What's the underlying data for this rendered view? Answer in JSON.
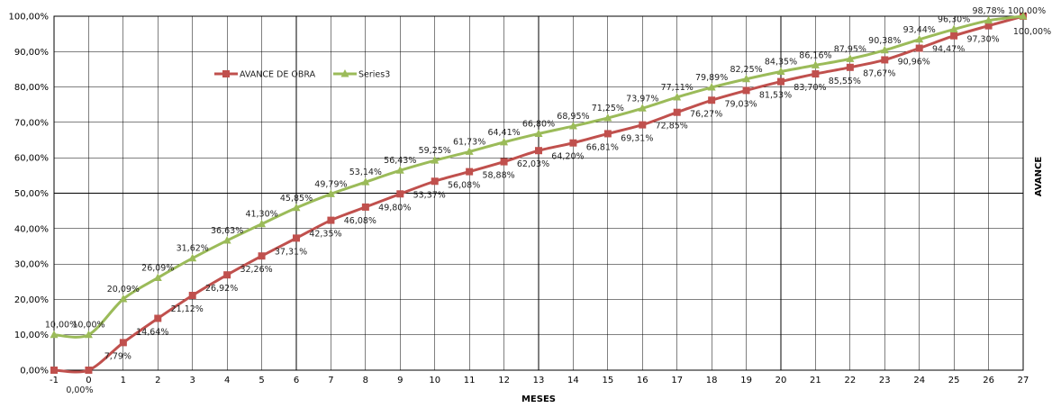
{
  "chart_data": {
    "type": "line",
    "title": "",
    "xlabel": "MESES",
    "ylabel": "AVANCE",
    "categories": [
      "-1",
      "0",
      "1",
      "2",
      "3",
      "4",
      "5",
      "6",
      "7",
      "8",
      "9",
      "10",
      "11",
      "12",
      "13",
      "14",
      "15",
      "16",
      "17",
      "18",
      "19",
      "20",
      "21",
      "22",
      "23",
      "24",
      "25",
      "26",
      "27"
    ],
    "y_tick_labels": [
      "0,00%",
      "10,00%",
      "20,00%",
      "30,00%",
      "40,00%",
      "50,00%",
      "60,00%",
      "70,00%",
      "80,00%",
      "90,00%",
      "100,00%"
    ],
    "ylim": [
      0,
      100
    ],
    "grid": true,
    "legend_position": "top-left",
    "series": [
      {
        "name": "AVANCE DE OBRA",
        "color": "#c0504d",
        "marker": "square",
        "values": [
          0,
          0,
          7.79,
          14.64,
          21.12,
          26.92,
          32.26,
          37.31,
          42.35,
          46.08,
          49.8,
          53.37,
          56.08,
          58.88,
          62.03,
          64.2,
          66.81,
          69.31,
          72.85,
          76.27,
          79.03,
          81.53,
          83.7,
          85.55,
          87.67,
          90.96,
          94.47,
          97.3,
          100
        ],
        "labels": [
          "",
          "0,00%",
          "7,79%",
          "14,64%",
          "21,12%",
          "26,92%",
          "32,26%",
          "37,31%",
          "42,35%",
          "46,08%",
          "49,80%",
          "53,37%",
          "56,08%",
          "58,88%",
          "62,03%",
          "64,20%",
          "66,81%",
          "69,31%",
          "72,85%",
          "76,27%",
          "79,03%",
          "81,53%",
          "83,70%",
          "85,55%",
          "87,67%",
          "90,96%",
          "94,47%",
          "97,30%",
          "100,00%"
        ]
      },
      {
        "name": "Series3",
        "color": "#9bbb59",
        "marker": "triangle",
        "values": [
          10,
          10,
          20.09,
          26.09,
          31.62,
          36.63,
          41.3,
          45.85,
          49.79,
          53.14,
          56.43,
          59.25,
          61.73,
          64.41,
          66.8,
          68.95,
          71.25,
          73.97,
          77.11,
          79.89,
          82.25,
          84.35,
          86.16,
          87.95,
          90.38,
          93.44,
          96.3,
          98.78,
          100
        ],
        "labels": [
          "10,00%",
          "10,00%",
          "20,09%",
          "26,09%",
          "31,62%",
          "36,63%",
          "41,30%",
          "45,85%",
          "49,79%",
          "53,14%",
          "56,43%",
          "59,25%",
          "61,73%",
          "64,41%",
          "66,80%",
          "68,95%",
          "71,25%",
          "73,97%",
          "77,11%",
          "79,89%",
          "82,25%",
          "84,35%",
          "86,16%",
          "87,95%",
          "90,38%",
          "93,44%",
          "96,30%",
          "98,78%",
          "100,00%"
        ]
      }
    ]
  }
}
